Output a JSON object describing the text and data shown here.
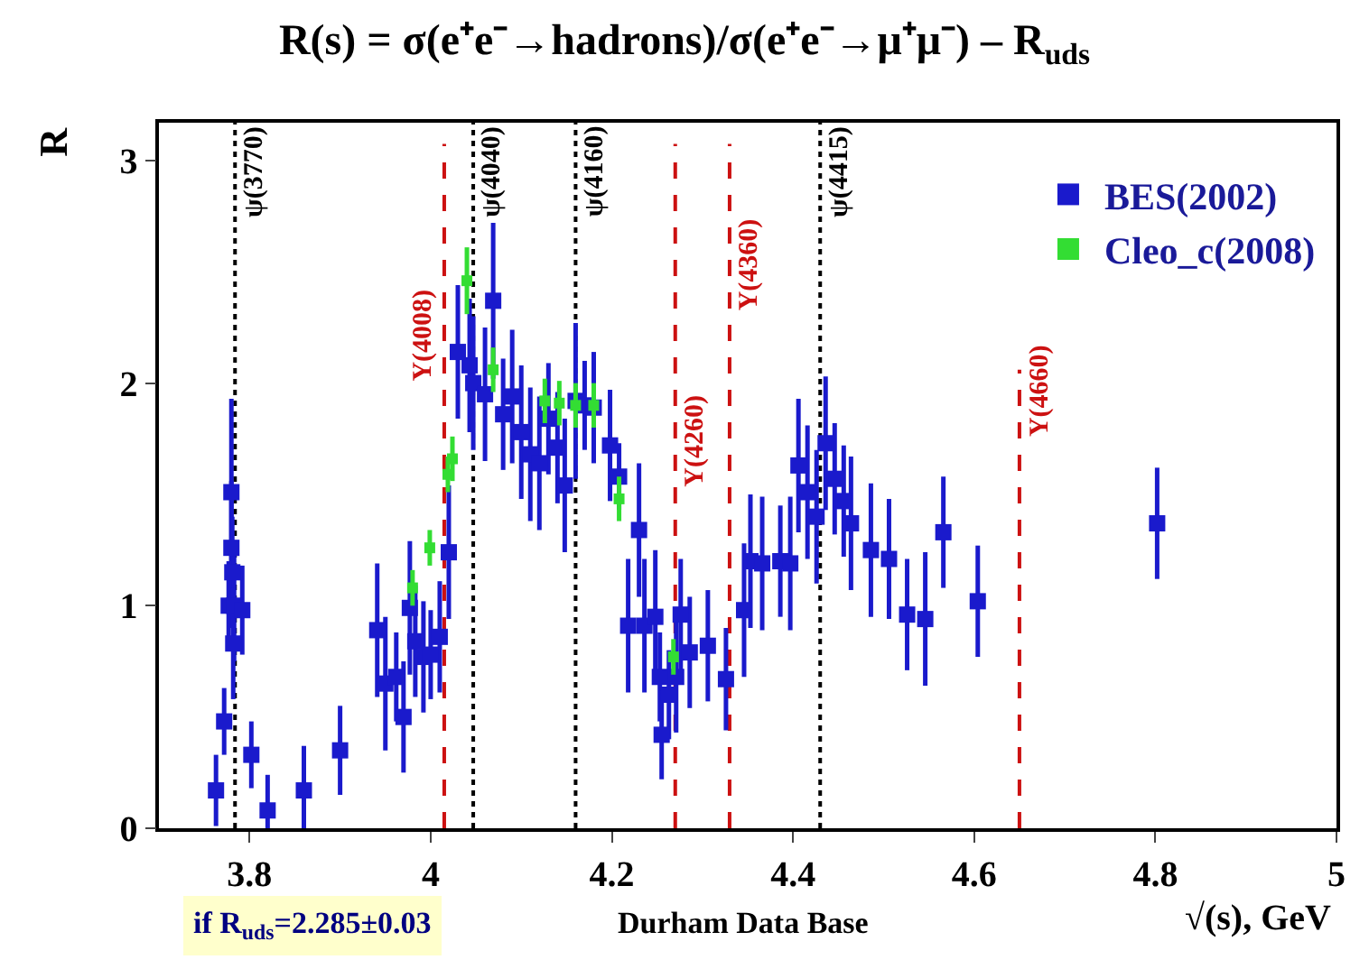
{
  "chart_data": {
    "type": "scatter",
    "title": "R(s) = σ(e⁺e⁻→hadrons)/σ(e⁺e⁻→μ⁺μ⁻) – R$_{uds}$",
    "xlabel": "√(s), GeV",
    "ylabel": "R",
    "xlim": [
      3.7,
      5.0
    ],
    "xticks": [
      3.8,
      4,
      4.2,
      4.4,
      4.6,
      4.8,
      5
    ],
    "ylim": [
      0,
      3.17
    ],
    "yticks": [
      0,
      1,
      2,
      3
    ],
    "grid": false,
    "legend": "top right",
    "marker": "square",
    "series": [
      {
        "name": "BES(2002)",
        "color": "#1a1acc",
        "x": [
          3.763,
          3.772,
          3.777,
          3.78,
          3.78,
          3.781,
          3.783,
          3.782,
          3.792,
          3.802,
          3.82,
          3.86,
          3.9,
          3.941,
          3.95,
          3.962,
          3.97,
          3.977,
          3.983,
          3.992,
          4.0,
          4.01,
          4.02,
          4.03,
          4.043,
          4.047,
          4.06,
          4.069,
          4.08,
          4.09,
          4.1,
          4.11,
          4.12,
          4.13,
          4.14,
          4.148,
          4.16,
          4.17,
          4.18,
          4.198,
          4.208,
          4.218,
          4.23,
          4.236,
          4.248,
          4.253,
          4.255,
          4.263,
          4.271,
          4.276,
          4.286,
          4.306,
          4.326,
          4.346,
          4.353,
          4.366,
          4.386,
          4.397,
          4.406,
          4.416,
          4.426,
          4.436,
          4.446,
          4.456,
          4.464,
          4.486,
          4.506,
          4.526,
          4.546,
          4.566,
          4.604,
          4.802
        ],
        "values": [
          0.17,
          0.48,
          1.0,
          1.51,
          1.26,
          1.15,
          1.0,
          0.83,
          0.98,
          0.33,
          0.08,
          0.17,
          0.35,
          0.89,
          0.65,
          0.68,
          0.5,
          0.99,
          0.84,
          0.77,
          0.78,
          0.86,
          1.24,
          2.14,
          2.08,
          2.0,
          1.95,
          2.37,
          1.86,
          1.94,
          1.78,
          1.68,
          1.64,
          1.84,
          1.71,
          1.54,
          1.92,
          1.9,
          1.89,
          1.72,
          1.58,
          0.91,
          1.34,
          0.91,
          0.95,
          0.68,
          0.42,
          0.6,
          0.68,
          0.96,
          0.79,
          0.82,
          0.67,
          0.98,
          1.2,
          1.19,
          1.2,
          1.19,
          1.63,
          1.51,
          1.4,
          1.73,
          1.57,
          1.47,
          1.37,
          1.25,
          1.21,
          0.96,
          0.94,
          1.33,
          1.02,
          1.37
        ],
        "errors": [
          0.16,
          0.15,
          0.2,
          0.42,
          0.3,
          0.25,
          0.25,
          0.25,
          0.2,
          0.15,
          0.16,
          0.2,
          0.2,
          0.3,
          0.3,
          0.2,
          0.25,
          0.3,
          0.25,
          0.25,
          0.2,
          0.25,
          0.3,
          0.3,
          0.3,
          0.3,
          0.3,
          0.35,
          0.25,
          0.3,
          0.3,
          0.3,
          0.3,
          0.25,
          0.25,
          0.3,
          0.35,
          0.2,
          0.25,
          0.25,
          0.15,
          0.3,
          0.3,
          0.3,
          0.3,
          0.2,
          0.2,
          0.2,
          0.25,
          0.25,
          0.25,
          0.25,
          0.23,
          0.3,
          0.3,
          0.3,
          0.25,
          0.3,
          0.3,
          0.3,
          0.3,
          0.3,
          0.25,
          0.25,
          0.3,
          0.3,
          0.27,
          0.25,
          0.3,
          0.25,
          0.25,
          0.25
        ]
      },
      {
        "name": "Cleo_c(2008)",
        "color": "#33dd33",
        "x": [
          3.98,
          3.999,
          4.019,
          4.024,
          4.04,
          4.069,
          4.126,
          4.142,
          4.16,
          4.18,
          4.208,
          4.268
        ],
        "values": [
          1.08,
          1.26,
          1.59,
          1.66,
          2.46,
          2.06,
          1.92,
          1.91,
          1.9,
          1.9,
          1.48,
          0.77
        ],
        "errors": [
          0.08,
          0.08,
          0.08,
          0.1,
          0.15,
          0.1,
          0.1,
          0.1,
          0.1,
          0.1,
          0.1,
          0.08
        ]
      }
    ],
    "ref_lines": [
      {
        "axis": "x",
        "value": 3.784,
        "label": "ψ(3770)",
        "color": "#000000",
        "line_style": "dotted"
      },
      {
        "axis": "x",
        "value": 4.015,
        "label": "Y(4008)",
        "color": "#cc1111",
        "line_style": "dashed"
      },
      {
        "axis": "x",
        "value": 4.047,
        "label": "ψ(4040)",
        "color": "#000000",
        "line_style": "dotted"
      },
      {
        "axis": "x",
        "value": 4.16,
        "label": "ψ(4160)",
        "color": "#000000",
        "line_style": "dotted"
      },
      {
        "axis": "x",
        "value": 4.27,
        "label": "Y(4260)",
        "color": "#cc1111",
        "line_style": "dashed"
      },
      {
        "axis": "x",
        "value": 4.33,
        "label": "Y(4360)",
        "color": "#cc1111",
        "line_style": "dashed"
      },
      {
        "axis": "x",
        "value": 4.43,
        "label": "ψ(4415)",
        "color": "#000000",
        "line_style": "dotted"
      },
      {
        "axis": "x",
        "value": 4.65,
        "label": "Y(4660)",
        "color": "#cc1111",
        "line_style": "dashed"
      }
    ],
    "annotations": [
      "if R$_{uds}$=2.285±0.03",
      "Durham Data Base"
    ]
  }
}
